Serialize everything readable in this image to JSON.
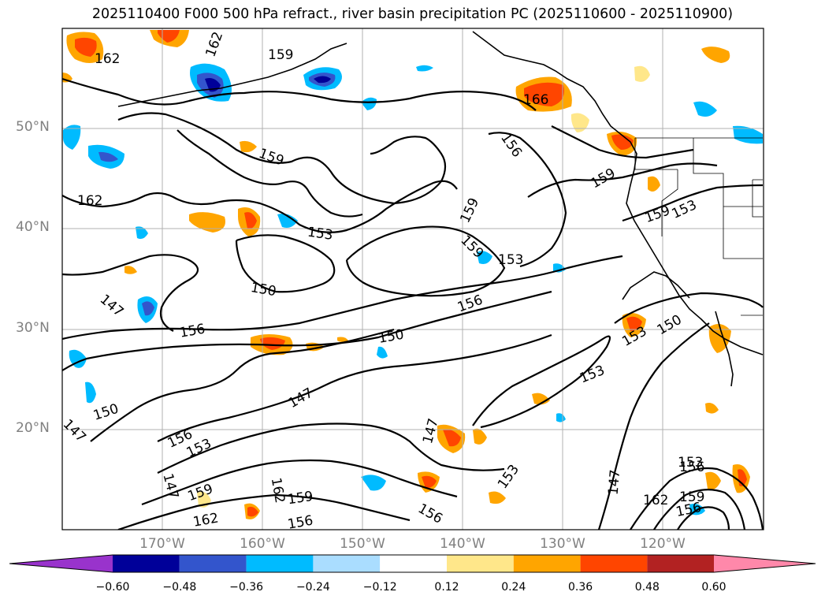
{
  "title": "2025110400 F000 500 hPa refract., river basin precipitation PC (2025110600 - 2025110900)",
  "map": {
    "lat_labels": [
      "50°N",
      "40°N",
      "30°N",
      "20°N"
    ],
    "lon_labels": [
      "170°W",
      "160°W",
      "150°W",
      "140°W",
      "130°W",
      "120°W"
    ],
    "contour_labels": [
      {
        "text": "162"
      },
      {
        "text": "159"
      },
      {
        "text": "162"
      },
      {
        "text": "159"
      },
      {
        "text": "162"
      },
      {
        "text": "156"
      },
      {
        "text": "159"
      },
      {
        "text": "159"
      },
      {
        "text": "159"
      },
      {
        "text": "153"
      },
      {
        "text": "153"
      },
      {
        "text": "159"
      },
      {
        "text": "153"
      },
      {
        "text": "150"
      },
      {
        "text": "156"
      },
      {
        "text": "147"
      },
      {
        "text": "156"
      },
      {
        "text": "150"
      },
      {
        "text": "153"
      },
      {
        "text": "150"
      },
      {
        "text": "153"
      },
      {
        "text": "147"
      },
      {
        "text": "150"
      },
      {
        "text": "147"
      },
      {
        "text": "156"
      },
      {
        "text": "153"
      },
      {
        "text": "147"
      },
      {
        "text": "147"
      },
      {
        "text": "153"
      },
      {
        "text": "147"
      },
      {
        "text": "159"
      },
      {
        "text": "162"
      },
      {
        "text": "159"
      },
      {
        "text": "162"
      },
      {
        "text": "156"
      },
      {
        "text": "156"
      },
      {
        "text": "153"
      },
      {
        "text": "156"
      },
      {
        "text": "162"
      },
      {
        "text": "159"
      },
      {
        "text": "156"
      },
      {
        "text": "166"
      }
    ]
  },
  "colorbar": {
    "colors": [
      "#9933cc",
      "#000099",
      "#3355cc",
      "#00bbff",
      "#aaddff",
      "#ffffff",
      "#ffe78a",
      "#ffa500",
      "#ff4500",
      "#b22222",
      "#ff88aa"
    ],
    "tick_labels": [
      "−0.60",
      "−0.48",
      "−0.36",
      "−0.24",
      "−0.12",
      "0.12",
      "0.24",
      "0.36",
      "0.48",
      "0.60"
    ]
  },
  "colors": {
    "contour": "#000000",
    "grid": "#b0b0b0",
    "tick_text": "#808080"
  }
}
